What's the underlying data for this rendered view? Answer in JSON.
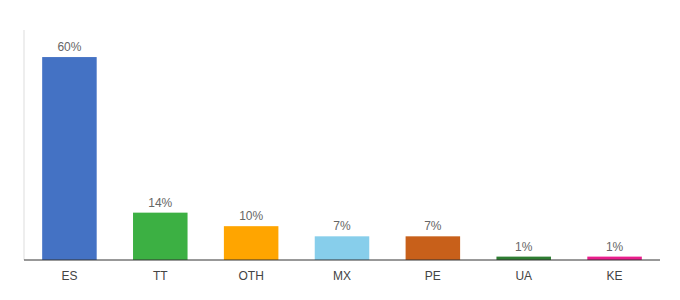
{
  "chart_data": {
    "type": "bar",
    "categories": [
      "ES",
      "TT",
      "OTH",
      "MX",
      "PE",
      "UA",
      "KE"
    ],
    "values": [
      60,
      14,
      10,
      7,
      7,
      1,
      1
    ],
    "value_labels": [
      "60%",
      "14%",
      "10%",
      "7%",
      "7%",
      "1%",
      "1%"
    ],
    "colors": [
      "#4472C4",
      "#3CB043",
      "#FFA500",
      "#87CEEB",
      "#C8601A",
      "#2E7D32",
      "#E91E8C"
    ],
    "ylim": [
      0,
      68
    ],
    "data_labels": true,
    "tick_labels": "x"
  }
}
